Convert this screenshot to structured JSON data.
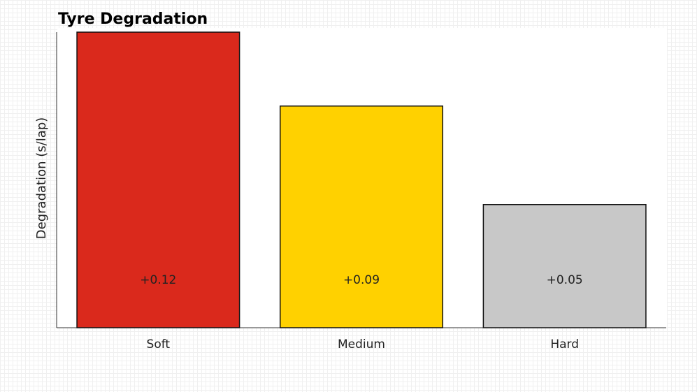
{
  "chart_data": {
    "type": "bar",
    "title": "Tyre Degradation",
    "y_label": "Degradation (s/lap)",
    "categories": [
      "Soft",
      "Medium",
      "Hard"
    ],
    "values": [
      0.12,
      0.09,
      0.05
    ],
    "value_labels": [
      "+0.12",
      "+0.09",
      "+0.05"
    ],
    "colors": [
      "#da291c",
      "#ffd100",
      "#c8c8c8"
    ],
    "ylim": [
      0,
      0.12
    ]
  }
}
